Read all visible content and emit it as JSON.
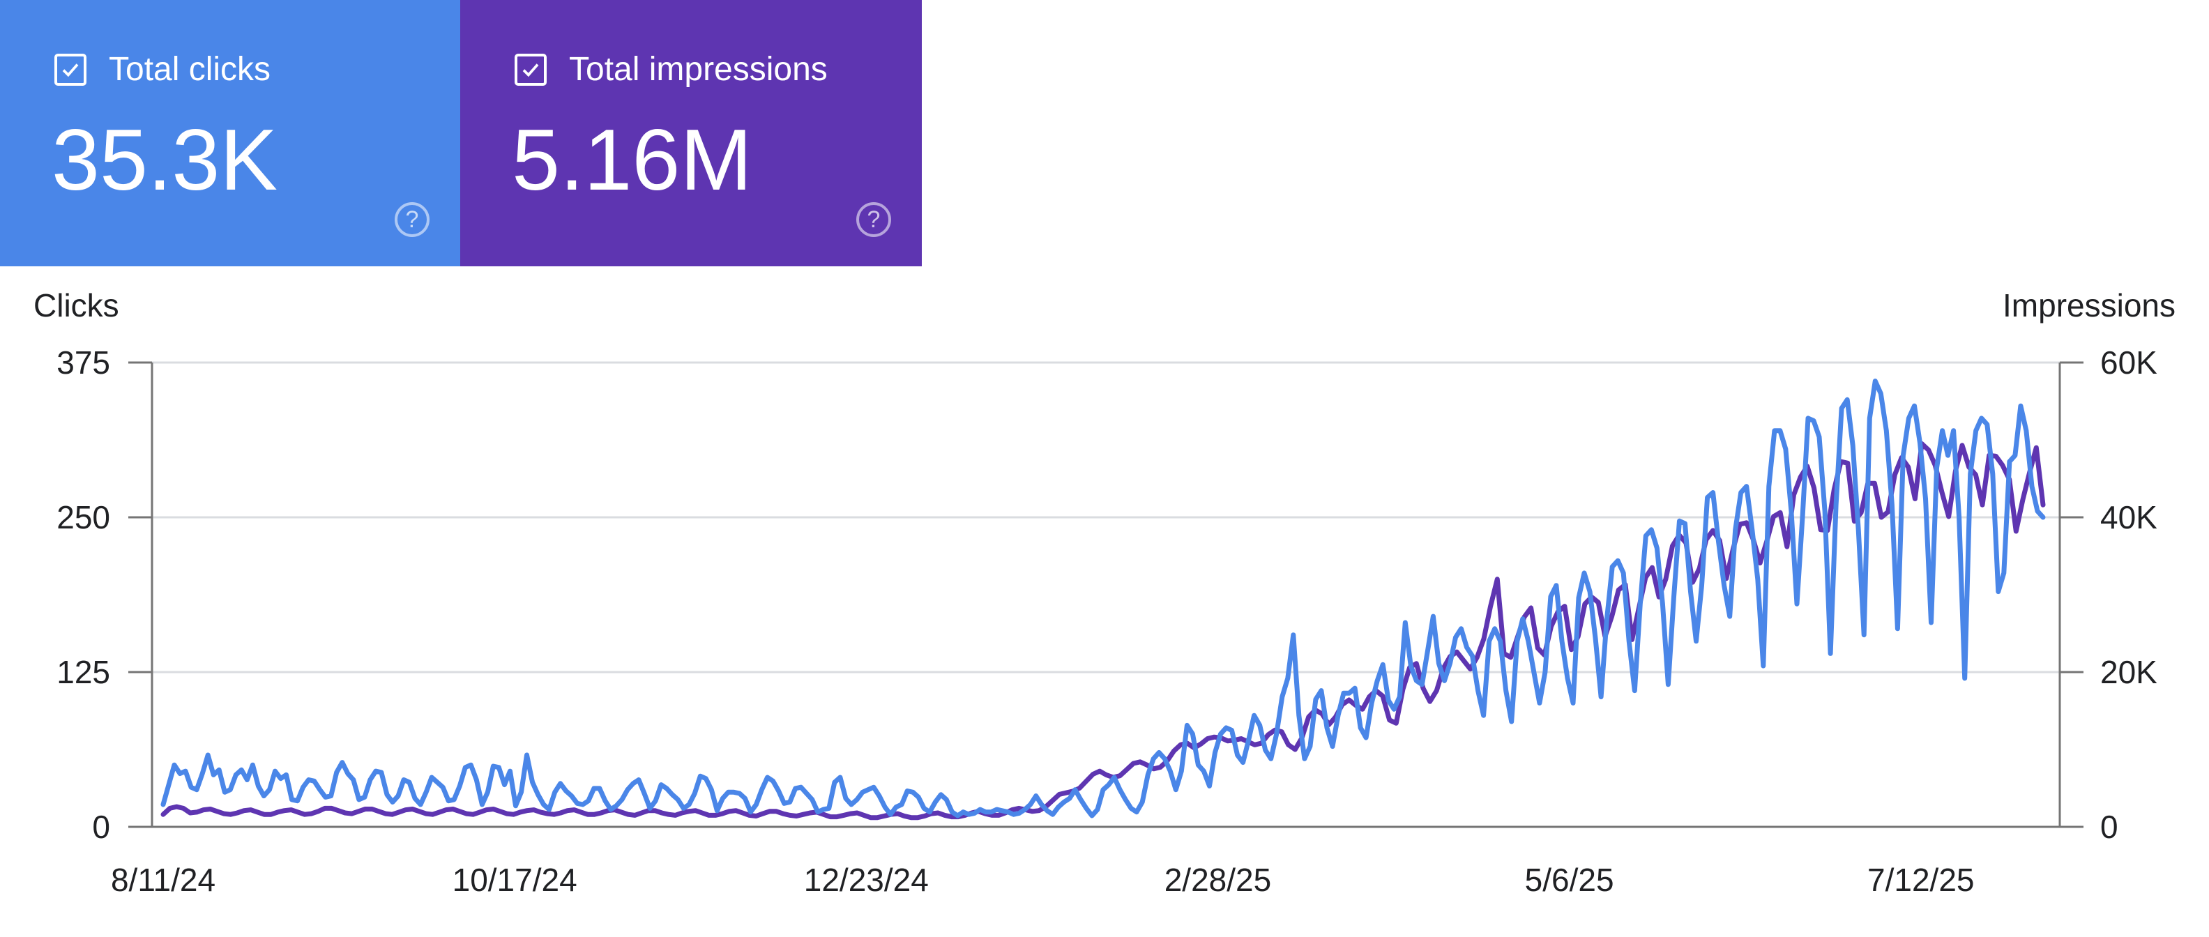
{
  "cards": [
    {
      "label": "Total clicks",
      "value": "35.3K",
      "color": "#4a86e8",
      "checked": true
    },
    {
      "label": "Total impressions",
      "value": "5.16M",
      "color": "#5e35b1",
      "checked": true
    }
  ],
  "chart_data": {
    "type": "line",
    "xlabels": [
      "8/11/24",
      "10/17/24",
      "12/23/24",
      "2/28/25",
      "5/6/25",
      "7/12/25"
    ],
    "left_axis": {
      "title": "Clicks",
      "ticks": [
        "0",
        "125",
        "250",
        "375"
      ],
      "range": [
        0,
        375
      ]
    },
    "right_axis": {
      "title": "Impressions",
      "ticks": [
        "0",
        "20K",
        "40K",
        "60K"
      ],
      "range": [
        0,
        60000
      ]
    },
    "grid": true,
    "series": [
      {
        "name": "Total impressions",
        "axis": "right",
        "color": "#5e35b1",
        "values": [
          1600,
          2400,
          2600,
          2400,
          1800,
          1900,
          2200,
          2300,
          2000,
          1700,
          1600,
          1800,
          2100,
          2200,
          1900,
          1600,
          1600,
          1900,
          2100,
          2200,
          1900,
          1600,
          1700,
          2000,
          2400,
          2400,
          2100,
          1800,
          1700,
          2000,
          2300,
          2300,
          2000,
          1700,
          1600,
          1900,
          2200,
          2300,
          2000,
          1700,
          1600,
          1900,
          2200,
          2300,
          2000,
          1700,
          1600,
          1900,
          2200,
          2300,
          2000,
          1700,
          1600,
          1900,
          2100,
          2200,
          1900,
          1700,
          1600,
          1800,
          2100,
          2200,
          1900,
          1600,
          1600,
          1800,
          2100,
          2200,
          1900,
          1600,
          1500,
          1800,
          2100,
          2100,
          1800,
          1600,
          1500,
          1800,
          2000,
          2100,
          1800,
          1500,
          1500,
          1700,
          2000,
          2100,
          1800,
          1500,
          1400,
          1700,
          2000,
          2000,
          1700,
          1500,
          1400,
          1600,
          1800,
          1900,
          1600,
          1300,
          1300,
          1500,
          1700,
          1800,
          1500,
          1200,
          1200,
          1400,
          1600,
          1700,
          1400,
          1200,
          1200,
          1400,
          1700,
          1800,
          1500,
          1300,
          1300,
          1500,
          1800,
          2000,
          1700,
          1500,
          1500,
          1800,
          2200,
          2400,
          2200,
          2000,
          2100,
          2600,
          3400,
          4200,
          4400,
          4600,
          5000,
          5900,
          6800,
          7200,
          6700,
          6400,
          6600,
          7400,
          8200,
          8400,
          8000,
          7500,
          7700,
          8500,
          9800,
          10600,
          10800,
          10200,
          10700,
          11400,
          11600,
          11500,
          11100,
          11200,
          11400,
          11000,
          10600,
          10800,
          11900,
          12500,
          12300,
          10600,
          10000,
          11500,
          14200,
          15100,
          14600,
          13200,
          14200,
          15800,
          16400,
          15700,
          15200,
          16800,
          17600,
          16900,
          13800,
          13400,
          17800,
          20600,
          21100,
          17900,
          16200,
          17600,
          20500,
          22000,
          22600,
          21500,
          20400,
          21900,
          24300,
          28500,
          32000,
          22400,
          21900,
          24500,
          27100,
          28300,
          23100,
          22200,
          25900,
          27800,
          28500,
          22900,
          24600,
          28800,
          29700,
          29000,
          24600,
          27200,
          30600,
          31300,
          24200,
          28200,
          32200,
          33500,
          29700,
          32000,
          36300,
          37700,
          36700,
          31600,
          33400,
          37100,
          38300,
          37000,
          32100,
          35900,
          39100,
          39300,
          37100,
          34100,
          36900,
          40100,
          40600,
          36200,
          42900,
          45200,
          46600,
          43800,
          38400,
          38300,
          43600,
          47200,
          47000,
          39500,
          40600,
          44400,
          44400,
          40000,
          40700,
          45500,
          47700,
          46500,
          42400,
          49500,
          48700,
          46700,
          43200,
          40100,
          46000,
          49300,
          46500,
          45500,
          41600,
          48000,
          47900,
          46700,
          44900,
          38200,
          42300,
          45800,
          49000,
          41600
        ],
        "note": "approximate values read from the chart"
      },
      {
        "name": "Total clicks",
        "axis": "left",
        "color": "#4a86e8",
        "values": [
          18,
          34,
          50,
          43,
          45,
          32,
          30,
          43,
          58,
          42,
          46,
          28,
          30,
          42,
          46,
          38,
          50,
          33,
          25,
          30,
          45,
          39,
          42,
          22,
          21,
          32,
          38,
          37,
          30,
          24,
          25,
          44,
          52,
          43,
          38,
          22,
          24,
          38,
          45,
          44,
          26,
          20,
          25,
          38,
          36,
          23,
          18,
          28,
          40,
          36,
          32,
          21,
          22,
          33,
          48,
          50,
          38,
          18,
          28,
          49,
          48,
          34,
          45,
          17,
          28,
          58,
          36,
          26,
          18,
          14,
          28,
          35,
          29,
          25,
          19,
          18,
          21,
          31,
          31,
          21,
          14,
          17,
          22,
          30,
          35,
          38,
          27,
          15,
          21,
          34,
          31,
          26,
          22,
          15,
          18,
          27,
          41,
          39,
          30,
          13,
          23,
          28,
          28,
          27,
          23,
          12,
          18,
          30,
          40,
          37,
          29,
          19,
          20,
          31,
          32,
          27,
          22,
          12,
          14,
          15,
          36,
          40,
          23,
          18,
          22,
          28,
          30,
          32,
          25,
          16,
          10,
          16,
          18,
          29,
          28,
          24,
          15,
          12,
          20,
          26,
          22,
          12,
          9,
          12,
          10,
          11,
          14,
          12,
          12,
          14,
          13,
          12,
          10,
          11,
          14,
          18,
          25,
          18,
          13,
          10,
          16,
          20,
          23,
          30,
          22,
          15,
          9,
          14,
          30,
          34,
          40,
          30,
          22,
          15,
          12,
          20,
          42,
          55,
          60,
          55,
          45,
          30,
          45,
          82,
          75,
          50,
          45,
          33,
          60,
          75,
          80,
          78,
          58,
          52,
          70,
          90,
          82,
          62,
          55,
          75,
          105,
          120,
          155,
          90,
          55,
          65,
          103,
          110,
          80,
          65,
          90,
          108,
          108,
          112,
          80,
          72,
          100,
          118,
          131,
          102,
          95,
          105,
          165,
          130,
          118,
          115,
          142,
          170,
          132,
          118,
          132,
          153,
          160,
          145,
          138,
          110,
          90,
          150,
          160,
          150,
          110,
          85,
          150,
          168,
          150,
          125,
          100,
          125,
          186,
          195,
          150,
          120,
          100,
          185,
          205,
          190,
          152,
          105,
          166,
          210,
          215,
          205,
          150,
          110,
          180,
          235,
          240,
          225,
          180,
          115,
          185,
          247,
          245,
          190,
          150,
          195,
          266,
          270,
          230,
          195,
          170,
          240,
          270,
          275,
          240,
          200,
          130,
          275,
          320,
          320,
          305,
          255,
          180,
          250,
          330,
          328,
          315,
          255,
          140,
          260,
          338,
          345,
          308,
          240,
          155,
          330,
          360,
          350,
          320,
          260,
          160,
          300,
          330,
          340,
          310,
          265,
          165,
          290,
          320,
          300,
          320,
          250,
          120,
          285,
          320,
          330,
          325,
          285,
          190,
          205,
          295,
          300,
          340,
          320,
          275,
          255,
          250
        ]
      }
    ]
  }
}
